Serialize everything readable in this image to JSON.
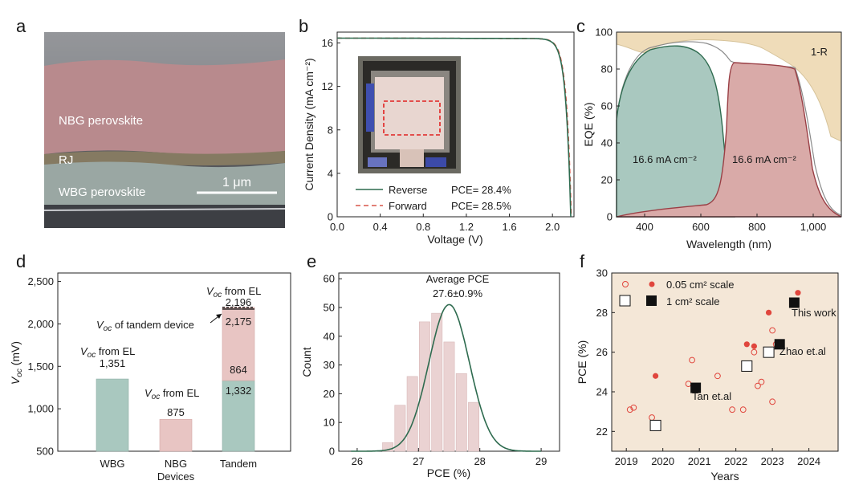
{
  "panels": {
    "a": {
      "letter": "a",
      "labels": [
        "NBG perovskite",
        "RJ",
        "WBG perovskite"
      ],
      "scale_bar": "1 μm"
    },
    "b": {
      "letter": "b",
      "type": "line",
      "xlabel": "Voltage (V)",
      "ylabel": "Current Density (mA cm⁻²)",
      "xlim": [
        0.0,
        2.2
      ],
      "ylim": [
        0,
        17
      ],
      "xticks": [
        0.0,
        0.4,
        0.8,
        1.2,
        1.6,
        2.0
      ],
      "yticks": [
        0,
        4,
        8,
        12,
        16
      ],
      "series": [
        {
          "name": "Reverse",
          "pce": "PCE= 28.4%",
          "color": "#2e6b4f",
          "dash": "solid",
          "jsc": 16.45,
          "voc": 2.17
        },
        {
          "name": "Forward",
          "pce": "PCE= 28.5%",
          "color": "#d9574a",
          "dash": "dashed",
          "jsc": 16.45,
          "voc": 2.175
        }
      ]
    },
    "c": {
      "letter": "c",
      "type": "area",
      "xlabel": "Wavelength (nm)",
      "ylabel": "EQE (%)",
      "xlim": [
        300,
        1100
      ],
      "ylim": [
        0,
        100
      ],
      "xticks": [
        400,
        600,
        800,
        1000
      ],
      "xtick_labels": [
        "400",
        "600",
        "800",
        "1,000"
      ],
      "yticks": [
        0,
        20,
        40,
        60,
        80,
        100
      ],
      "series": [
        {
          "name": "1-R",
          "color": "#efdcb9"
        },
        {
          "name": "WBG EQE",
          "annotation": "16.6 mA cm⁻²",
          "color": "#a9c8bf"
        },
        {
          "name": "NBG EQE",
          "annotation": "16.6 mA cm⁻²",
          "color": "#d9aaa8"
        }
      ]
    },
    "d": {
      "letter": "d",
      "type": "bar",
      "ylabel": "Voc (mV)",
      "ylim": [
        500,
        2600
      ],
      "yticks": [
        500,
        1000,
        1500,
        2000,
        2500
      ],
      "ytick_labels": [
        "500",
        "1,000",
        "1,500",
        "2,000",
        "2,500"
      ],
      "categories": [
        "WBG",
        "NBG Devices",
        "Tandem"
      ],
      "values": {
        "wbg": 1351,
        "nbg": 875,
        "tandem_wbg": 1332,
        "tandem_nbg": 864,
        "tandem_device": 2175,
        "tandem_el": 2196
      },
      "value_labels": {
        "wbg": "1,351",
        "nbg": "875",
        "tandem_wbg": "1,332",
        "tandem_nbg": "864",
        "tandem_device": "2,175",
        "tandem_el": "2,196"
      },
      "annotations": {
        "from_el": "from EL",
        "of_tandem": "of tandem device"
      },
      "colors": {
        "wbg": "#a9c8bf",
        "nbg": "#e8c5c3"
      }
    },
    "e": {
      "letter": "e",
      "type": "bar",
      "xlabel": "PCE (%)",
      "ylabel": "Count",
      "xlim": [
        25.7,
        29.3
      ],
      "ylim": [
        0,
        62
      ],
      "xticks": [
        26,
        27,
        28,
        29
      ],
      "yticks": [
        0,
        10,
        20,
        30,
        40,
        50,
        60
      ],
      "bin_centers": [
        26.3,
        26.5,
        26.7,
        26.9,
        27.1,
        27.3,
        27.5,
        27.7,
        27.9,
        28.1,
        28.3,
        28.5
      ],
      "counts": [
        0,
        3,
        16,
        26,
        45,
        48,
        38,
        27,
        17,
        0,
        0,
        0
      ],
      "bars": [
        {
          "x": 26.5,
          "v": 3
        },
        {
          "x": 26.7,
          "v": 16
        },
        {
          "x": 26.9,
          "v": 26
        },
        {
          "x": 27.1,
          "v": 45
        },
        {
          "x": 27.3,
          "v": 48
        },
        {
          "x": 27.5,
          "v": 38
        },
        {
          "x": 27.7,
          "v": 27
        },
        {
          "x": 27.9,
          "v": 17
        }
      ],
      "fit": {
        "mean": 27.5,
        "sigma": 0.33,
        "peak": 51
      },
      "title": "Average PCE",
      "subtitle": "27.6±0.9%",
      "colors": {
        "bar": "#ead2d2",
        "fit": "#2e6b4f"
      }
    },
    "f": {
      "letter": "f",
      "type": "scatter",
      "xlabel": "Years",
      "ylabel": "PCE (%)",
      "xlim": [
        2018.6,
        2024.8
      ],
      "ylim": [
        21,
        30
      ],
      "xticks": [
        2019,
        2020,
        2021,
        2022,
        2023,
        2024
      ],
      "yticks": [
        22,
        24,
        26,
        28,
        30
      ],
      "legend": [
        "0.05 cm² scale",
        "1 cm²   scale"
      ],
      "series": {
        "small_open": [
          [
            2019.1,
            23.1
          ],
          [
            2019.2,
            23.2
          ],
          [
            2019.7,
            22.7
          ],
          [
            2020.7,
            24.4
          ],
          [
            2020.8,
            25.6
          ],
          [
            2021.5,
            24.8
          ],
          [
            2021.9,
            23.1
          ],
          [
            2022.2,
            23.1
          ],
          [
            2022.5,
            26.0
          ],
          [
            2022.6,
            24.3
          ],
          [
            2022.7,
            24.5
          ],
          [
            2023.0,
            23.5
          ],
          [
            2023.0,
            27.1
          ],
          [
            2023.1,
            26.4
          ]
        ],
        "small_filled": [
          [
            2019.8,
            24.8
          ],
          [
            2022.3,
            26.4
          ],
          [
            2022.5,
            26.3
          ],
          [
            2022.9,
            28.0
          ],
          [
            2023.7,
            29.0
          ]
        ],
        "large_open": [
          [
            2019.8,
            22.3
          ],
          [
            2022.3,
            25.3
          ],
          [
            2022.9,
            26.0
          ]
        ],
        "large_filled": [
          [
            2020.9,
            24.2
          ],
          [
            2023.2,
            26.4
          ],
          [
            2023.6,
            28.5
          ]
        ]
      },
      "labels": {
        "this_work": "This work",
        "zhao": "Zhao et.al",
        "tan": "Tan et.al"
      },
      "colors": {
        "bg": "#f4e7d7",
        "marker": "#e0463d"
      }
    }
  }
}
